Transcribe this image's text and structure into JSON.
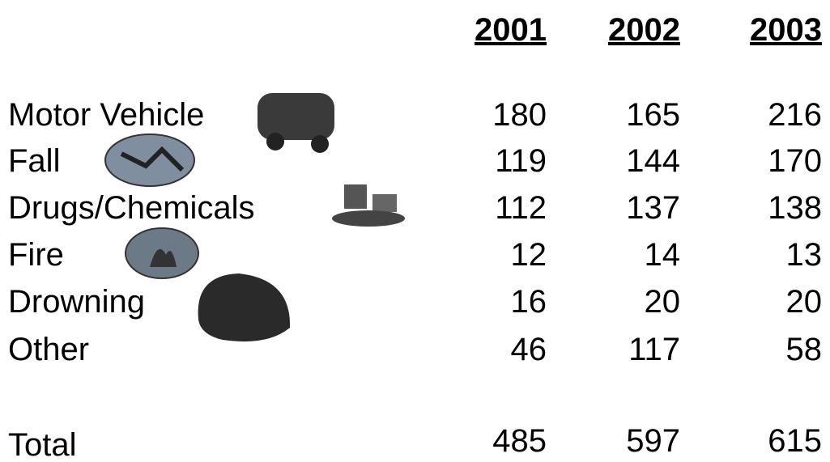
{
  "table": {
    "header": [
      "2001",
      "2002",
      "2003"
    ],
    "rows": [
      {
        "label": "Motor Vehicle",
        "values": [
          180,
          165,
          216
        ]
      },
      {
        "label": "Fall",
        "values": [
          119,
          144,
          170
        ]
      },
      {
        "label": "Drugs/Chemicals",
        "values": [
          112,
          137,
          138
        ]
      },
      {
        "label": "Fire",
        "values": [
          12,
          14,
          13
        ]
      },
      {
        "label": "Drowning",
        "values": [
          16,
          20,
          20
        ]
      },
      {
        "label": "Other",
        "values": [
          46,
          117,
          58
        ]
      }
    ],
    "total": {
      "label": "Total",
      "values": [
        485,
        597,
        615
      ]
    }
  }
}
